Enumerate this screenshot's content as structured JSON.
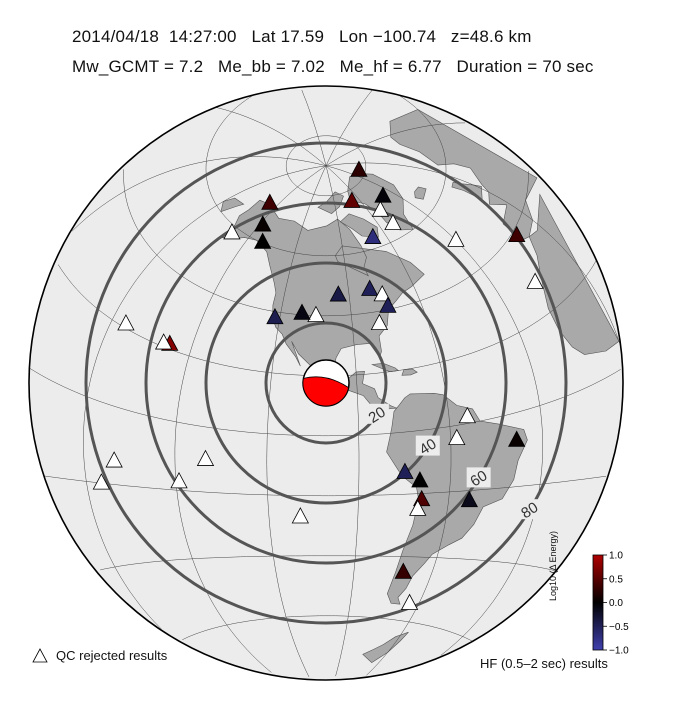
{
  "header": {
    "line1": "2014/04/18  14:27:00   Lat 17.59   Lon −100.74   z=48.6 km",
    "line2": "Mw_GCMT = 7.2   Me_bb = 7.02   Me_hf = 6.77   Duration = 70 sec"
  },
  "event": {
    "lat": 17.59,
    "lon": -100.74,
    "depth_km": 48.6
  },
  "distance_rings": [
    {
      "deg": 20,
      "label": "20"
    },
    {
      "deg": 40,
      "label": "40"
    },
    {
      "deg": 60,
      "label": "60"
    },
    {
      "deg": 80,
      "label": "80"
    }
  ],
  "colorbar": {
    "title": "Log10 (Δ Energy)",
    "ticks": [
      "1.0",
      "0.5",
      "0.0",
      "−0.5",
      "−1.0"
    ],
    "min": -1.0,
    "max": 1.0,
    "colors": {
      "high": "#b00000",
      "mid": "#000000",
      "low": "#4040b0"
    }
  },
  "legend": {
    "qc_label": "QC rejected results",
    "hf_label": "HF (0.5–2 sec) results"
  },
  "stations": [
    {
      "lat": 71.3,
      "lon": -156.6,
      "v": 0.35
    },
    {
      "lat": 64.9,
      "lon": -147.8,
      "v": 0.05
    },
    {
      "lat": 60.2,
      "lon": -141.0,
      "v": 0.0
    },
    {
      "lat": 58.0,
      "lon": -160.0,
      "qc": true
    },
    {
      "lat": 81.6,
      "lon": -16.7,
      "v": 0.25
    },
    {
      "lat": 76.5,
      "lon": -68.8,
      "v": 0.55
    },
    {
      "lat": 70.0,
      "lon": -51.0,
      "qc": true
    },
    {
      "lat": 72.6,
      "lon": -38.5,
      "v": -0.05
    },
    {
      "lat": 64.7,
      "lon": -50.8,
      "qc": true
    },
    {
      "lat": 63.5,
      "lon": -68.5,
      "v": -0.7
    },
    {
      "lat": 50.0,
      "lon": -30.0,
      "qc": true
    },
    {
      "lat": 38.7,
      "lon": -9.1,
      "v": 0.35
    },
    {
      "lat": 28.0,
      "lon": -16.0,
      "qc": true
    },
    {
      "lat": 46.8,
      "lon": -95.0,
      "v": -0.4
    },
    {
      "lat": 47.5,
      "lon": -80.0,
      "v": -0.5
    },
    {
      "lat": 45.0,
      "lon": -75.0,
      "qc": true
    },
    {
      "lat": 41.0,
      "lon": -73.9,
      "v": -0.5
    },
    {
      "lat": 40.0,
      "lon": -105.0,
      "qc": true
    },
    {
      "lat": 40.5,
      "lon": -111.0,
      "v": -0.1
    },
    {
      "lat": 38.0,
      "lon": -122.0,
      "v": -0.45
    },
    {
      "lat": 36.0,
      "lon": -79.0,
      "qc": true
    },
    {
      "lat": 21.3,
      "lon": -157.8,
      "v": 0.75
    },
    {
      "lat": 21.0,
      "lon": -160.0,
      "qc": true
    },
    {
      "lat": 21.0,
      "lon": -175.0,
      "qc": true
    },
    {
      "lat": 2.0,
      "lon": -54.0,
      "qc": true
    },
    {
      "lat": -4.0,
      "lon": -58.0,
      "qc": true
    },
    {
      "lat": -7.5,
      "lon": -38.5,
      "v": 0.05
    },
    {
      "lat": -13.0,
      "lon": -75.0,
      "v": -0.5
    },
    {
      "lat": -16.0,
      "lon": -70.0,
      "v": 0.0
    },
    {
      "lat": -22.0,
      "lon": -69.0,
      "v": 0.45
    },
    {
      "lat": -25.0,
      "lon": -70.0,
      "qc": true
    },
    {
      "lat": -23.0,
      "lon": -53.0,
      "v": -0.15
    },
    {
      "lat": -45.0,
      "lon": -71.0,
      "v": 0.3
    },
    {
      "lat": -54.5,
      "lon": -64.0,
      "qc": true
    },
    {
      "lat": -10.0,
      "lon": -140.0,
      "qc": true
    },
    {
      "lat": -14.0,
      "lon": -170.0,
      "qc": true
    },
    {
      "lat": -17.5,
      "lon": -149.0,
      "qc": true
    },
    {
      "lat": -27.1,
      "lon": -109.4,
      "qc": true
    },
    {
      "lat": -20.0,
      "lon": -175.0,
      "qc": true
    }
  ]
}
